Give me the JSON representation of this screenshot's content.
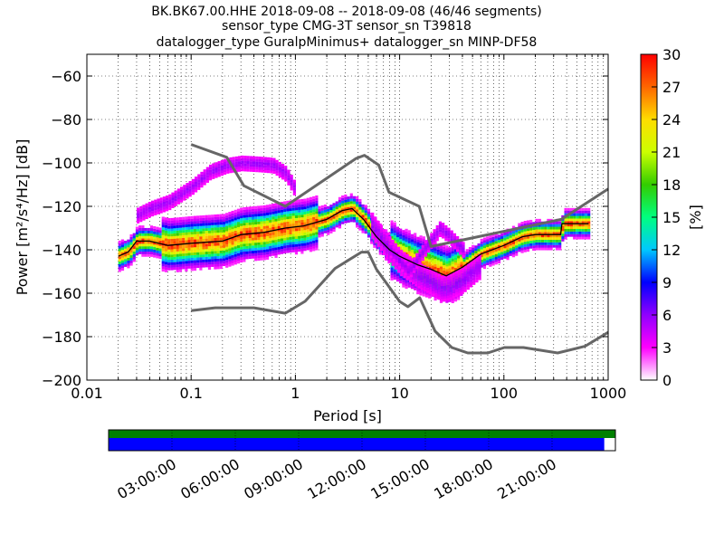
{
  "chart_data": {
    "type": "heatmap",
    "title_lines": [
      "BK.BK67.00.HHE   2018-09-08 -- 2018-09-08  (46/46 segments)",
      "sensor_type CMG-3T sensor_sn T39818",
      "datalogger_type GuralpMinimus+ datalogger_sn MINP-DF58"
    ],
    "xlabel": "Period [s]",
    "ylabel": "Power [m²/s⁴/Hz] [dB]",
    "x_scale": "log",
    "xlim": [
      0.01,
      1000
    ],
    "ylim": [
      -200,
      -50
    ],
    "x_ticks": [
      {
        "v": 0.01,
        "label": "0.01"
      },
      {
        "v": 0.1,
        "label": "0.1"
      },
      {
        "v": 1,
        "label": "1"
      },
      {
        "v": 10,
        "label": "10"
      },
      {
        "v": 100,
        "label": "100"
      },
      {
        "v": 1000,
        "label": "1000"
      }
    ],
    "y_ticks": [
      {
        "v": -60,
        "label": "−60"
      },
      {
        "v": -80,
        "label": "−80"
      },
      {
        "v": -100,
        "label": "−100"
      },
      {
        "v": -120,
        "label": "−120"
      },
      {
        "v": -140,
        "label": "−140"
      },
      {
        "v": -160,
        "label": "−160"
      },
      {
        "v": -180,
        "label": "−180"
      },
      {
        "v": -200,
        "label": "−200"
      }
    ],
    "grid": true,
    "colorbar": {
      "label": "[%]",
      "range": [
        0,
        30
      ],
      "ticks": [
        {
          "v": 0,
          "label": "0"
        },
        {
          "v": 3,
          "label": "3"
        },
        {
          "v": 6,
          "label": "6"
        },
        {
          "v": 9,
          "label": "9"
        },
        {
          "v": 12,
          "label": "12"
        },
        {
          "v": 15,
          "label": "15"
        },
        {
          "v": 18,
          "label": "18"
        },
        {
          "v": 21,
          "label": "21"
        },
        {
          "v": 24,
          "label": "24"
        },
        {
          "v": 27,
          "label": "27"
        },
        {
          "v": 30,
          "label": "30"
        }
      ],
      "colors": [
        "#ffffff",
        "#ff00ff",
        "#9000ff",
        "#0000ff",
        "#00c8ff",
        "#00ff7f",
        "#33cc00",
        "#ccff00",
        "#ffdd00",
        "#ff6600",
        "#ff0000"
      ]
    },
    "noise_models": {
      "color": "#666666",
      "nhnm": {
        "period": [
          0.1,
          0.22,
          0.32,
          0.8,
          3.8,
          4.6,
          6.3,
          7.9,
          15.4,
          20,
          354.8,
          1000
        ],
        "db": [
          -91.5,
          -97.4,
          -110.5,
          -120,
          -98,
          -96.5,
          -101,
          -113.5,
          -120,
          -138.5,
          -126,
          -112
        ]
      },
      "nlnm": {
        "period": [
          0.1,
          0.17,
          0.4,
          0.8,
          1.24,
          2.4,
          4.3,
          5,
          6,
          10,
          12,
          15.6,
          21.9,
          31.6,
          45,
          70,
          101,
          154,
          328,
          600,
          1000
        ],
        "db": [
          -168,
          -166.7,
          -166.7,
          -169.2,
          -163.7,
          -148.6,
          -141.1,
          -141.1,
          -149,
          -163.8,
          -166.2,
          -162.1,
          -177.5,
          -185,
          -187.5,
          -187.5,
          -185,
          -185,
          -187.5,
          -184.4,
          -178
        ]
      }
    },
    "ppsd_mode_curve": {
      "period": [
        0.02,
        0.025,
        0.03,
        0.04,
        0.06,
        0.1,
        0.2,
        0.3,
        0.5,
        0.8,
        1.2,
        2,
        2.8,
        3.5,
        4.5,
        6,
        8,
        10,
        15,
        20,
        28,
        40,
        60,
        100,
        150,
        200,
        350,
        360,
        500,
        650
      ],
      "db": [
        -143,
        -141,
        -136,
        -136,
        -138,
        -137,
        -136,
        -133,
        -132,
        -130,
        -129,
        -126,
        -122,
        -121,
        -126,
        -134,
        -140,
        -143,
        -147,
        -149,
        -152,
        -148,
        -142,
        -138,
        -134,
        -133,
        -133,
        -128,
        -128,
        -128
      ]
    },
    "ppsd_secondary_branches": [
      {
        "period": [
          0.03,
          0.04,
          0.06,
          0.1,
          0.15,
          0.22,
          0.3,
          0.45,
          0.6,
          0.8,
          1.0
        ],
        "db": [
          -124,
          -121,
          -118,
          -111,
          -104,
          -101,
          -100,
          -100.5,
          -101,
          -105,
          -113
        ],
        "weight": 3
      },
      {
        "period": [
          5,
          7,
          10,
          15,
          20,
          25,
          30,
          40,
          60
        ],
        "db": [
          -127,
          -137,
          -146,
          -152,
          -155,
          -158,
          -157,
          -154,
          -147
        ],
        "weight": 5
      },
      {
        "period": [
          8,
          12,
          18,
          24,
          30,
          40
        ],
        "db": [
          -140,
          -150,
          -138,
          -130,
          -134,
          -140
        ],
        "weight": 3
      }
    ],
    "timeline": {
      "coverage_fraction": 0.978,
      "ticks": [
        {
          "frac": 0.125,
          "label": "03:00:00"
        },
        {
          "frac": 0.25,
          "label": "06:00:00"
        },
        {
          "frac": 0.375,
          "label": "09:00:00"
        },
        {
          "frac": 0.5,
          "label": "12:00:00"
        },
        {
          "frac": 0.625,
          "label": "15:00:00"
        },
        {
          "frac": 0.75,
          "label": "18:00:00"
        },
        {
          "frac": 0.875,
          "label": "21:00:00"
        }
      ],
      "colors": {
        "data": "#008000",
        "ppsd": "#0000ff"
      }
    }
  }
}
